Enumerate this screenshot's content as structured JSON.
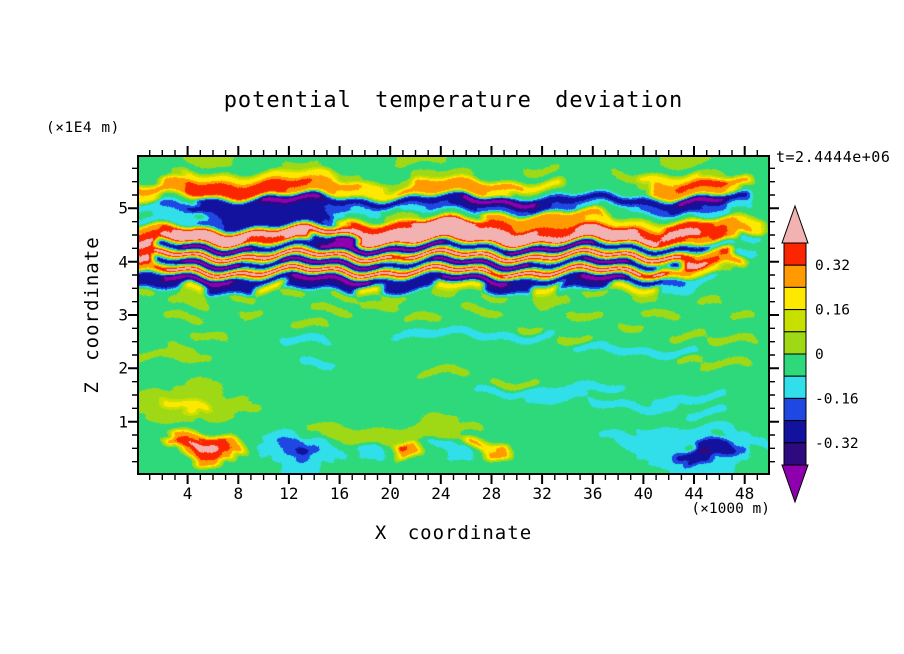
{
  "annotations": {
    "time_label": "t=2.4444e+06",
    "z_unit": "(×1E4 m)",
    "x_unit": "(×1000 m)"
  },
  "axes": {
    "x": {
      "label": "X coordinate",
      "range": [
        0,
        50
      ],
      "major_ticks": [
        4,
        8,
        12,
        16,
        20,
        24,
        28,
        32,
        36,
        40,
        44,
        48
      ],
      "minor_step": 1
    },
    "z": {
      "label": "Z coordinate",
      "range": [
        0,
        6
      ],
      "major_ticks": [
        1,
        2,
        3,
        4,
        5
      ],
      "minor_step": 0.25
    }
  },
  "colorbar": {
    "labels": [
      "0.32",
      "0.16",
      "0",
      "-0.16",
      "-0.32"
    ],
    "band_colors_top_to_bottom": [
      "#fb2500",
      "#ff9b00",
      "#ffe800",
      "#c8e000",
      "#9fd916",
      "#2ed97c",
      "#30dfe9",
      "#1f48e3",
      "#12129e",
      "#2d0b7e"
    ],
    "arrow_top": "#f3b2b2",
    "arrow_bottom": "#8e00ad"
  },
  "chart_data": {
    "type": "heatmap",
    "title": "potential temperature deviation",
    "xlabel": "X coordinate (×1000 m)",
    "ylabel": "Z coordinate (×1E4 m)",
    "x_range": [
      0,
      50
    ],
    "z_range": [
      0,
      6
    ],
    "levels": [
      -0.4,
      -0.32,
      -0.24,
      -0.16,
      -0.08,
      0,
      0.08,
      0.16,
      0.24,
      0.32,
      0.4
    ],
    "palette": [
      "#8e00ad",
      "#2d0b7e",
      "#12129e",
      "#1f48e3",
      "#30dfe9",
      "#2ed97c",
      "#9fd916",
      "#c8e000",
      "#ffe800",
      "#ff9b00",
      "#fb2500",
      "#f3b2b2"
    ],
    "field": {
      "encoding": "each char is a contour-band index 0(lowest,<-0.40)..b(highest,>0.40); rows run top(z=6) to bottom(z=0), 50 columns x=0..50",
      "rows_top_to_bottom": [
        "55556666555555555555566665555555555555555566665555",
        "55555555555566655555555555555556665555555555555555",
        "55568888888888886655556666655555555555668888866555",
        "5599aaaaaaaaaa99998866999999999888555555699aaaa995",
        "9999aaaaaaaa999988888999999988555555555559999998 5",
        "88555222220000022222222222000000222222222220000225",
        "44332222222222233445544332233332233445543322233445",
        "54445322222222245556665555599999999995555555444555",
        "4444332222222238aaaaabbbbbaaa999999888888aaaa99885",
        "9abbbbbbbbbbbbbbbbbbbbbbbbbbbbbaaabbbbbaabbbaa9985",
        "abbbbbbbaaabb2200bbbbbbbbbbbbbbbbbbbbbbbbaa99a9445",
        "b2200000022222000000000022222000000022222222244555",
        "abbbbbbbbbbbbbbbbbbbabbbbbbbbbbbbbbbbbbbbbba99a445",
        "b2200000222000000002222000000002222000022 2bba9955",
        "9abbbbbbbbbbbbbbbbbbbbbbbbbbabbbbbbbbbbbab99886555",
        "22000000222200000002222200000022222000022233445555",
        "22228822228822222288222288882222882222888844455555",
        "66556655665566556655665566556655665566556655555555",
        "55566655555555555566655555555555666555555555566555",
        "55555555665555666555555555666555555555556665555555",
        "55666555555555555555566655555555556665555555555665",
        "55555555555566655555555555555566555555665555555555",
        "55556665555555555555444444444444455555555566655555",
        "55555555555444455555555555555555566655555555566665",
        "55665555555555555555555555555555554444444444555555",
        "66666555555555555555555555555555555555555566555555",
        "55555555555544455555555555555555555555555555666655",
        "55555555555555555555556666555555555555555555555555",
        "55556665555555555555555555556666555555555555555555",
        "55566665555555555555555555544444444444455555555555",
        "66666666655555555555555555555554444455555444444 55",
        "66888866665555555555555555555555555544444445555555",
        "66668666555555555555555555555555555555555555444555",
        "56666555555555555555555666555555555555555555555555",
        "55555555555555666666666666665555555555554444444455",
        "55599aa955444556666666666655555555555444444444 445",
        "559abba9544334455445a9544598955555555544444 222444",
        "5559aa955443234454459955445995555555555444221223 5",
        "55559955554434455555555544555555555555554442244455",
        "55555555555444555555555555555555555555555544444555"
      ]
    }
  }
}
